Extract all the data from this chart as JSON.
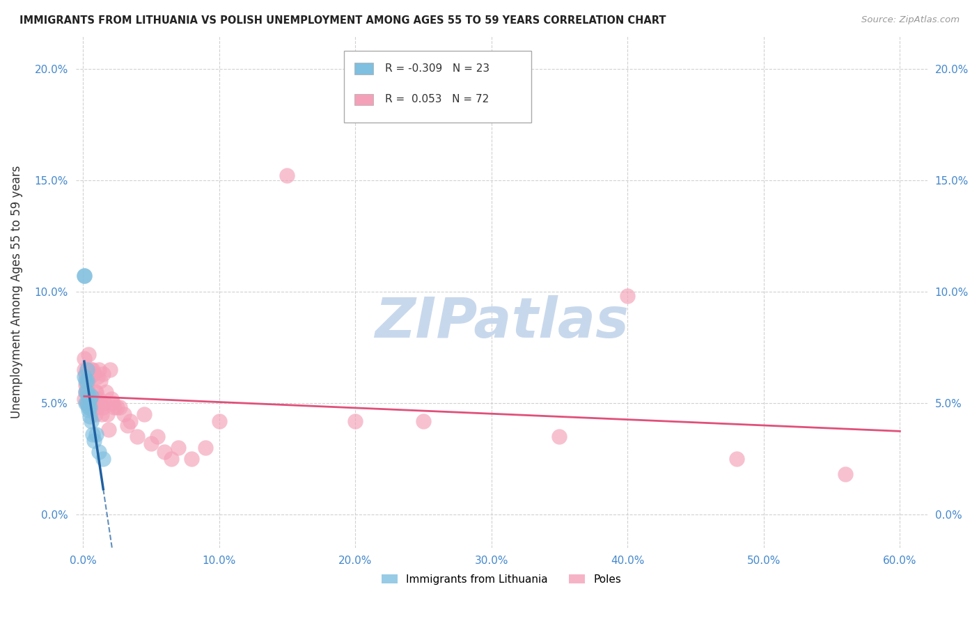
{
  "title": "IMMIGRANTS FROM LITHUANIA VS POLISH UNEMPLOYMENT AMONG AGES 55 TO 59 YEARS CORRELATION CHART",
  "source": "Source: ZipAtlas.com",
  "xlabel_ticks": [
    "0.0%",
    "10.0%",
    "20.0%",
    "30.0%",
    "40.0%",
    "50.0%",
    "60.0%"
  ],
  "xlabel_vals": [
    0.0,
    0.1,
    0.2,
    0.3,
    0.4,
    0.5,
    0.6
  ],
  "ylabel_ticks": [
    "0.0%",
    "5.0%",
    "10.0%",
    "15.0%",
    "20.0%"
  ],
  "ylabel_vals": [
    0.0,
    0.05,
    0.1,
    0.15,
    0.2
  ],
  "ylabel_label": "Unemployment Among Ages 55 to 59 years",
  "legend_blue_label": "Immigrants from Lithuania",
  "legend_pink_label": "Poles",
  "blue_R": "-0.309",
  "blue_N": "23",
  "pink_R": "0.053",
  "pink_N": "72",
  "blue_color": "#7fbfdf",
  "pink_color": "#f4a0b8",
  "blue_line_color": "#2060a0",
  "pink_line_color": "#e0507a",
  "background_color": "#ffffff",
  "grid_color": "#cccccc",
  "blue_scatter_x": [
    0.001,
    0.001,
    0.001,
    0.002,
    0.002,
    0.002,
    0.003,
    0.003,
    0.003,
    0.003,
    0.004,
    0.004,
    0.004,
    0.005,
    0.005,
    0.005,
    0.006,
    0.006,
    0.007,
    0.008,
    0.01,
    0.012,
    0.015
  ],
  "blue_scatter_y": [
    0.107,
    0.107,
    0.062,
    0.06,
    0.055,
    0.05,
    0.065,
    0.06,
    0.055,
    0.05,
    0.053,
    0.048,
    0.047,
    0.052,
    0.048,
    0.044,
    0.053,
    0.042,
    0.036,
    0.033,
    0.036,
    0.028,
    0.025
  ],
  "pink_scatter_x": [
    0.001,
    0.001,
    0.001,
    0.002,
    0.002,
    0.002,
    0.003,
    0.003,
    0.003,
    0.003,
    0.004,
    0.004,
    0.004,
    0.004,
    0.005,
    0.005,
    0.005,
    0.005,
    0.006,
    0.006,
    0.006,
    0.007,
    0.007,
    0.007,
    0.007,
    0.008,
    0.008,
    0.008,
    0.009,
    0.009,
    0.01,
    0.01,
    0.01,
    0.011,
    0.011,
    0.012,
    0.012,
    0.013,
    0.013,
    0.014,
    0.015,
    0.015,
    0.016,
    0.017,
    0.018,
    0.019,
    0.02,
    0.021,
    0.022,
    0.023,
    0.025,
    0.027,
    0.03,
    0.033,
    0.035,
    0.04,
    0.045,
    0.05,
    0.055,
    0.06,
    0.065,
    0.07,
    0.08,
    0.09,
    0.1,
    0.15,
    0.2,
    0.25,
    0.35,
    0.4,
    0.48,
    0.56
  ],
  "pink_scatter_y": [
    0.065,
    0.07,
    0.052,
    0.058,
    0.063,
    0.055,
    0.065,
    0.055,
    0.05,
    0.058,
    0.052,
    0.062,
    0.072,
    0.055,
    0.053,
    0.063,
    0.048,
    0.062,
    0.052,
    0.065,
    0.05,
    0.063,
    0.048,
    0.065,
    0.052,
    0.063,
    0.05,
    0.048,
    0.055,
    0.045,
    0.048,
    0.055,
    0.052,
    0.062,
    0.048,
    0.065,
    0.052,
    0.05,
    0.06,
    0.045,
    0.048,
    0.063,
    0.05,
    0.055,
    0.045,
    0.038,
    0.065,
    0.052,
    0.05,
    0.048,
    0.048,
    0.048,
    0.045,
    0.04,
    0.042,
    0.035,
    0.045,
    0.032,
    0.035,
    0.028,
    0.025,
    0.03,
    0.025,
    0.03,
    0.042,
    0.152,
    0.042,
    0.042,
    0.035,
    0.098,
    0.025,
    0.018
  ],
  "xlim": [
    -0.005,
    0.62
  ],
  "ylim": [
    -0.015,
    0.215
  ],
  "watermark": "ZIPatlas",
  "watermark_color": "#c8d8ec",
  "blue_trend_x_start": 0.001,
  "blue_trend_x_solid_end": 0.015,
  "blue_trend_x_dash_end": 0.17,
  "pink_trend_x_start": 0.001,
  "pink_trend_x_end": 0.6
}
